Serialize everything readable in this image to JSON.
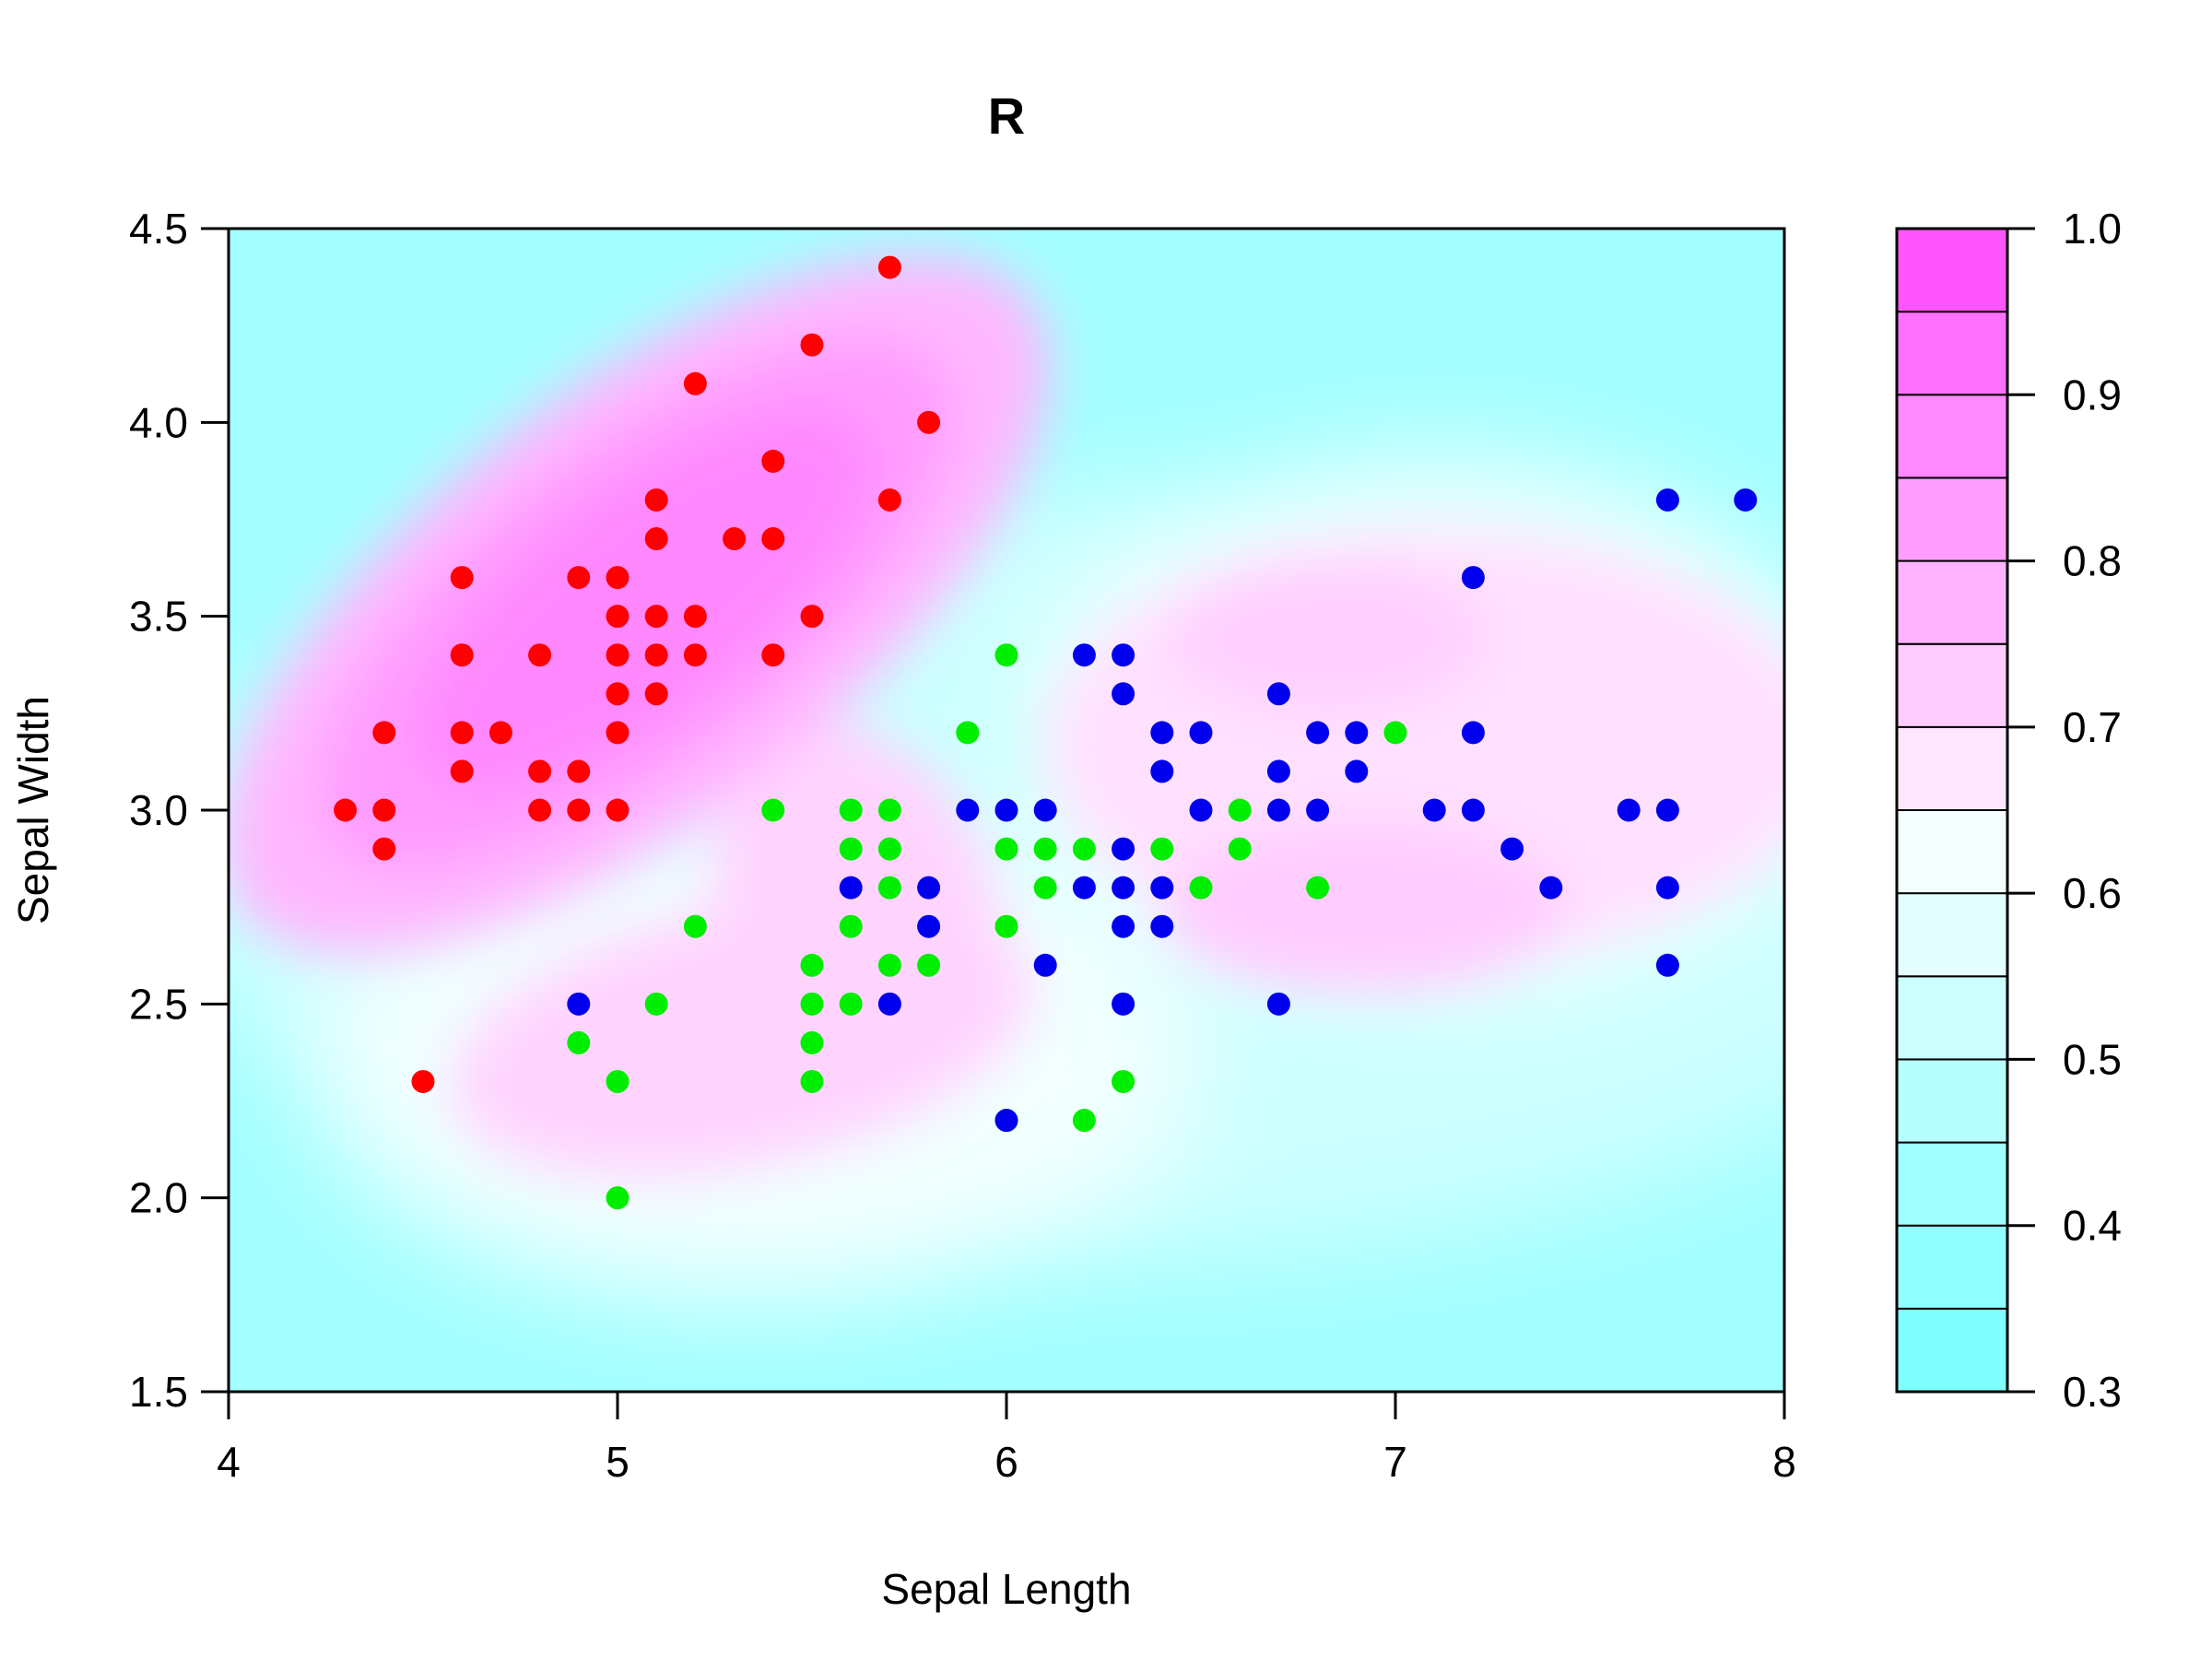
{
  "chart_data": {
    "type": "scatter",
    "title": "R",
    "xlabel": "Sepal Length",
    "ylabel": "Sepal Width",
    "xlim": [
      4,
      8
    ],
    "ylim": [
      1.5,
      4.5
    ],
    "xticks": [
      "4",
      "5",
      "6",
      "7",
      "8"
    ],
    "yticks": [
      "1.5",
      "2.0",
      "2.5",
      "3.0",
      "3.5",
      "4.0",
      "4.5"
    ],
    "background": "filled contour of a class-probability surface (cyan low, magenta high)",
    "colorbar": {
      "ticks": [
        "0.3",
        "0.4",
        "0.5",
        "0.6",
        "0.7",
        "0.8",
        "0.9",
        "1.0"
      ],
      "levels": [
        0.3,
        0.35,
        0.4,
        0.45,
        0.5,
        0.55,
        0.6,
        0.65,
        0.7,
        0.75,
        0.8,
        0.85,
        0.9,
        0.95,
        1.0
      ],
      "colors": [
        "#80FFFF",
        "#8FFFFF",
        "#A0FFFF",
        "#B5FFFF",
        "#CCFFFF",
        "#E3FFFF",
        "#F5FFFF",
        "#FFE6FF",
        "#FFCCFF",
        "#FFB3FF",
        "#FF9EFF",
        "#FF8AFF",
        "#FF70FF",
        "#FF55FF"
      ]
    },
    "series": [
      {
        "color": "#FF0000",
        "points": [
          [
            4.3,
            3.0
          ],
          [
            4.4,
            3.0
          ],
          [
            4.4,
            2.9
          ],
          [
            4.4,
            3.2
          ],
          [
            4.5,
            2.3
          ],
          [
            4.6,
            3.1
          ],
          [
            4.6,
            3.2
          ],
          [
            4.6,
            3.4
          ],
          [
            4.6,
            3.6
          ],
          [
            4.7,
            3.2
          ],
          [
            4.8,
            3.0
          ],
          [
            4.8,
            3.1
          ],
          [
            4.8,
            3.4
          ],
          [
            4.9,
            3.0
          ],
          [
            4.9,
            3.1
          ],
          [
            4.9,
            3.6
          ],
          [
            5.0,
            3.0
          ],
          [
            5.0,
            3.2
          ],
          [
            5.0,
            3.3
          ],
          [
            5.0,
            3.4
          ],
          [
            5.0,
            3.5
          ],
          [
            5.0,
            3.6
          ],
          [
            5.1,
            3.3
          ],
          [
            5.1,
            3.4
          ],
          [
            5.1,
            3.5
          ],
          [
            5.1,
            3.7
          ],
          [
            5.1,
            3.8
          ],
          [
            5.2,
            3.4
          ],
          [
            5.2,
            3.5
          ],
          [
            5.2,
            4.1
          ],
          [
            5.3,
            3.7
          ],
          [
            5.4,
            3.4
          ],
          [
            5.4,
            3.7
          ],
          [
            5.4,
            3.9
          ],
          [
            5.5,
            3.5
          ],
          [
            5.5,
            4.2
          ],
          [
            5.7,
            3.8
          ],
          [
            5.7,
            4.4
          ],
          [
            5.8,
            4.0
          ]
        ]
      },
      {
        "color": "#00EE00",
        "points": [
          [
            4.9,
            2.4
          ],
          [
            5.0,
            2.0
          ],
          [
            5.0,
            2.3
          ],
          [
            5.1,
            2.5
          ],
          [
            5.2,
            2.7
          ],
          [
            5.4,
            3.0
          ],
          [
            5.5,
            2.3
          ],
          [
            5.5,
            2.4
          ],
          [
            5.5,
            2.5
          ],
          [
            5.5,
            2.6
          ],
          [
            5.6,
            2.5
          ],
          [
            5.6,
            2.7
          ],
          [
            5.6,
            2.9
          ],
          [
            5.6,
            3.0
          ],
          [
            5.7,
            2.6
          ],
          [
            5.7,
            2.8
          ],
          [
            5.7,
            2.9
          ],
          [
            5.7,
            3.0
          ],
          [
            5.8,
            2.6
          ],
          [
            5.9,
            3.2
          ],
          [
            6.0,
            2.2
          ],
          [
            6.0,
            2.7
          ],
          [
            6.0,
            2.9
          ],
          [
            6.0,
            3.4
          ],
          [
            6.1,
            2.8
          ],
          [
            6.1,
            2.9
          ],
          [
            6.2,
            2.2
          ],
          [
            6.2,
            2.9
          ],
          [
            6.3,
            2.3
          ],
          [
            6.4,
            2.9
          ],
          [
            6.5,
            2.8
          ],
          [
            6.6,
            2.9
          ],
          [
            6.6,
            3.0
          ],
          [
            6.8,
            2.8
          ],
          [
            7.0,
            3.2
          ]
        ]
      },
      {
        "color": "#0000EE",
        "points": [
          [
            4.9,
            2.5
          ],
          [
            5.6,
            2.8
          ],
          [
            5.7,
            2.5
          ],
          [
            5.8,
            2.7
          ],
          [
            5.8,
            2.8
          ],
          [
            5.9,
            3.0
          ],
          [
            6.0,
            2.2
          ],
          [
            6.0,
            3.0
          ],
          [
            6.1,
            2.6
          ],
          [
            6.1,
            3.0
          ],
          [
            6.2,
            2.8
          ],
          [
            6.2,
            3.4
          ],
          [
            6.3,
            2.5
          ],
          [
            6.3,
            2.7
          ],
          [
            6.3,
            2.8
          ],
          [
            6.3,
            2.9
          ],
          [
            6.3,
            3.3
          ],
          [
            6.3,
            3.4
          ],
          [
            6.4,
            2.7
          ],
          [
            6.4,
            2.8
          ],
          [
            6.4,
            3.1
          ],
          [
            6.4,
            3.2
          ],
          [
            6.5,
            3.0
          ],
          [
            6.5,
            3.2
          ],
          [
            6.7,
            2.5
          ],
          [
            6.7,
            3.0
          ],
          [
            6.7,
            3.1
          ],
          [
            6.7,
            3.3
          ],
          [
            6.8,
            3.0
          ],
          [
            6.8,
            3.2
          ],
          [
            6.9,
            3.1
          ],
          [
            6.9,
            3.2
          ],
          [
            7.1,
            3.0
          ],
          [
            7.2,
            3.0
          ],
          [
            7.2,
            3.2
          ],
          [
            7.2,
            3.6
          ],
          [
            7.3,
            2.9
          ],
          [
            7.4,
            2.8
          ],
          [
            7.6,
            3.0
          ],
          [
            7.7,
            2.6
          ],
          [
            7.7,
            2.8
          ],
          [
            7.7,
            3.0
          ],
          [
            7.7,
            3.8
          ],
          [
            7.9,
            3.8
          ]
        ]
      }
    ]
  }
}
